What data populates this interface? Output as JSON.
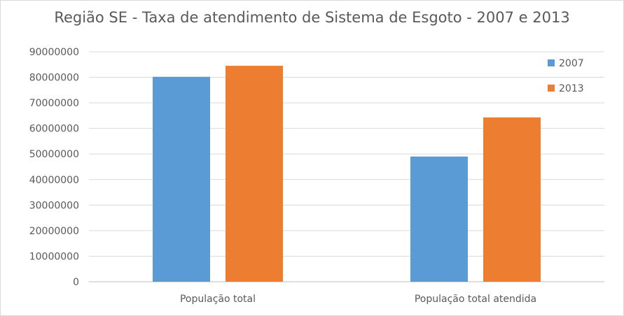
{
  "chart_data": {
    "type": "bar",
    "title": "Região SE - Taxa de atendimento de Sistema de Esgoto - 2007 e 2013",
    "xlabel": "",
    "ylabel": "",
    "categories": [
      "População total",
      "População total atendida"
    ],
    "series": [
      {
        "name": "2007",
        "values": [
          80200000,
          49000000
        ],
        "color": "#5b9bd5"
      },
      {
        "name": "2013",
        "values": [
          84500000,
          64300000
        ],
        "color": "#ed7d31"
      }
    ],
    "ylim": [
      0,
      90000000
    ],
    "yticks": [
      "0",
      "10000000",
      "20000000",
      "30000000",
      "40000000",
      "50000000",
      "60000000",
      "70000000",
      "80000000",
      "90000000"
    ],
    "grid": true,
    "legend_position": "top-right"
  }
}
